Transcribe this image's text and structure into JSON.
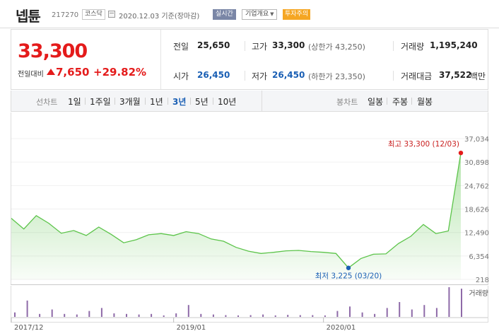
{
  "header": {
    "stock_name": "넵튠",
    "stock_code": "217270",
    "market": "코스닥",
    "base_date": "2020.12.03 기준(장마감)",
    "realtime_badge": "실시간",
    "company_select": "기업개요",
    "caution_badge": "투자주의"
  },
  "quote": {
    "current_price": "33,300",
    "change_label": "전일대비",
    "change_value": "7,650",
    "change_rate": "+29.82%",
    "prev_close_label": "전일",
    "prev_close": "25,650",
    "open_label": "시가",
    "open": "26,450",
    "high_label": "고가",
    "high": "33,300",
    "upper_limit": "(상한가 43,250)",
    "low_label": "저가",
    "low": "26,450",
    "lower_limit": "(하한가 23,350)",
    "volume_label": "거래량",
    "volume": "1,195,240",
    "amount_label": "거래대금",
    "amount": "37,522",
    "amount_unit": "백만"
  },
  "period_bar": {
    "line_chart_label": "선차트",
    "line_periods": [
      "1일",
      "1주일",
      "3개월",
      "1년",
      "3년",
      "5년",
      "10년"
    ],
    "active_period": "3년",
    "candle_chart_label": "봉차트",
    "candle_periods": [
      "일봉",
      "주봉",
      "월봉"
    ]
  },
  "colors": {
    "up": "#e41b1b",
    "down": "#1a5fb4",
    "line": "#5cc44a",
    "volume": "#8e6aa8"
  },
  "chart_data": {
    "type": "area",
    "x_ticks": [
      "2017/12",
      "2019/01",
      "2020/01"
    ],
    "y_ticks": [
      "37,034",
      "30,898",
      "24,762",
      "18,626",
      "12,490",
      "6,354",
      "218"
    ],
    "ylim": [
      218,
      37034
    ],
    "x_range": [
      "2017-12",
      "2020-12"
    ],
    "series": [
      {
        "values": [
          [
            "2017-12",
            16200
          ],
          [
            "2018-01",
            13400
          ],
          [
            "2018-02",
            16900
          ],
          [
            "2018-03",
            14900
          ],
          [
            "2018-04",
            12300
          ],
          [
            "2018-05",
            13000
          ],
          [
            "2018-06",
            11700
          ],
          [
            "2018-07",
            13900
          ],
          [
            "2018-08",
            12000
          ],
          [
            "2018-09",
            9800
          ],
          [
            "2018-10",
            10600
          ],
          [
            "2018-11",
            11900
          ],
          [
            "2018-12",
            12200
          ],
          [
            "2019-01",
            11700
          ],
          [
            "2019-02",
            12700
          ],
          [
            "2019-03",
            12200
          ],
          [
            "2019-04",
            10800
          ],
          [
            "2019-05",
            10200
          ],
          [
            "2019-06",
            8600
          ],
          [
            "2019-07",
            7600
          ],
          [
            "2019-08",
            7000
          ],
          [
            "2019-09",
            7300
          ],
          [
            "2019-10",
            7700
          ],
          [
            "2019-11",
            7800
          ],
          [
            "2019-12",
            7500
          ],
          [
            "2020-01",
            7300
          ],
          [
            "2020-02",
            7000
          ],
          [
            "2020-03",
            3225
          ],
          [
            "2020-04",
            5700
          ],
          [
            "2020-05",
            6800
          ],
          [
            "2020-06",
            6900
          ],
          [
            "2020-07",
            9600
          ],
          [
            "2020-08",
            11500
          ],
          [
            "2020-09",
            14600
          ],
          [
            "2020-10",
            12200
          ],
          [
            "2020-11",
            12900
          ],
          [
            "2020-12",
            33300
          ]
        ]
      }
    ],
    "annotations": {
      "high": "최고 33,300 (12/03)",
      "low": "최저 3,225 (03/20)"
    },
    "volume_label": "거래량",
    "volume_values": [
      0.15,
      0.55,
      0.1,
      0.25,
      0.1,
      0.08,
      0.2,
      0.3,
      0.12,
      0.1,
      0.08,
      0.1,
      0.05,
      0.12,
      0.4,
      0.1,
      0.08,
      0.06,
      0.05,
      0.06,
      0.08,
      0.05,
      0.07,
      0.06,
      0.06,
      0.05,
      0.2,
      0.35,
      0.15,
      0.1,
      0.3,
      0.5,
      0.25,
      0.4,
      0.3,
      1.0,
      0.95
    ]
  }
}
